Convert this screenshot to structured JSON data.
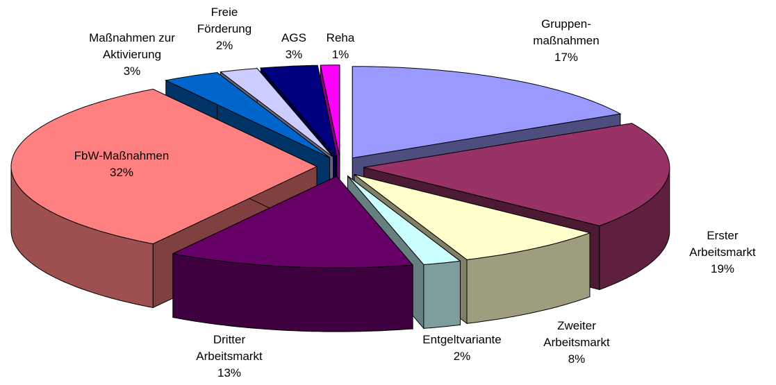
{
  "chart_data": {
    "type": "pie",
    "categories": [
      "Gruppen-\nmaßnahmen",
      "Erster\nArbeitsmarkt",
      "Zweiter\nArbeitsmarkt",
      "Entgeltvariante",
      "Dritter\nArbeitsmarkt",
      "FbW-Maßnahmen",
      "Maßnahmen zur\nAktivierung",
      "Freie\nFörderung",
      "AGS",
      "Reha"
    ],
    "values": [
      17,
      19,
      8,
      2,
      13,
      32,
      3,
      2,
      3,
      1
    ],
    "value_labels": [
      "17%",
      "19%",
      "8%",
      "2%",
      "13%",
      "32%",
      "3%",
      "2%",
      "3%",
      "1%"
    ],
    "colors": [
      "#9999ff",
      "#993366",
      "#ffffcc",
      "#ccffff",
      "#660066",
      "#ff8080",
      "#0066cc",
      "#ccccff",
      "#000080",
      "#ff00ff"
    ]
  }
}
